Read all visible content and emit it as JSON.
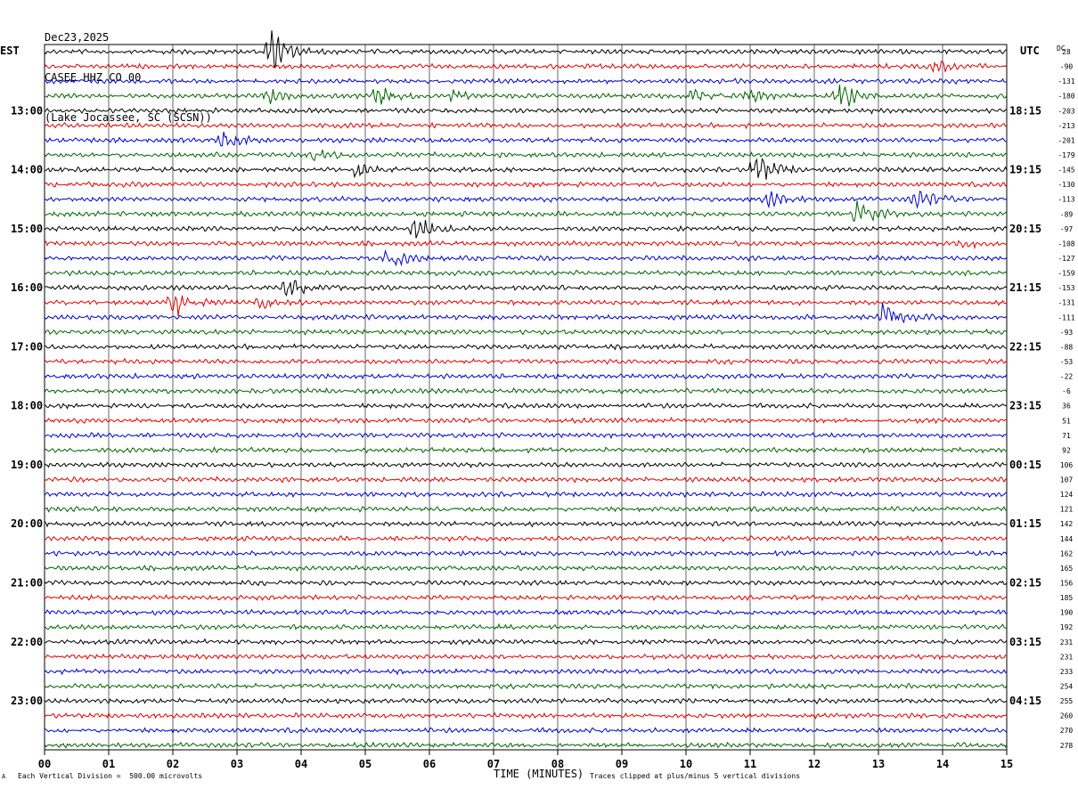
{
  "header": {
    "date": "Dec23,2025",
    "station": "CASEE HHZ CO 00",
    "location": "(Lake Jocassee, SC (SCSN))"
  },
  "left_tz": "EST",
  "right_tz": "UTC",
  "dc_label": "DC",
  "footer": {
    "logo_mark": "A",
    "scale_note": "Each Vertical Division =  500.00 microvolts",
    "x_title": "TIME (MINUTES)",
    "clip_note": "Traces clipped at plus/minus 5 vertical divisions"
  },
  "colors": {
    "black": "#000000",
    "red": "#e00000",
    "blue": "#0000cc",
    "green": "#006400",
    "grid": "#000000"
  },
  "chart_data": {
    "type": "line",
    "title": "CASEE HHZ CO 00",
    "xlabel": "TIME (MINUTES)",
    "ylabel": "",
    "xlim": [
      0,
      15
    ],
    "x_ticks": [
      "00",
      "01",
      "02",
      "03",
      "04",
      "05",
      "06",
      "07",
      "08",
      "09",
      "10",
      "11",
      "12",
      "13",
      "14",
      "15"
    ],
    "trace_count": 48,
    "trace_colors": [
      "black",
      "red",
      "blue",
      "green"
    ],
    "left_hour_labels": [
      {
        "trace": 4,
        "text": "13:00"
      },
      {
        "trace": 8,
        "text": "14:00"
      },
      {
        "trace": 12,
        "text": "15:00"
      },
      {
        "trace": 16,
        "text": "16:00"
      },
      {
        "trace": 20,
        "text": "17:00"
      },
      {
        "trace": 24,
        "text": "18:00"
      },
      {
        "trace": 28,
        "text": "19:00"
      },
      {
        "trace": 32,
        "text": "20:00"
      },
      {
        "trace": 36,
        "text": "21:00"
      },
      {
        "trace": 40,
        "text": "22:00"
      },
      {
        "trace": 44,
        "text": "23:00"
      }
    ],
    "right_hour_labels": [
      {
        "trace": 4,
        "text": "18:15"
      },
      {
        "trace": 8,
        "text": "19:15"
      },
      {
        "trace": 12,
        "text": "20:15"
      },
      {
        "trace": 16,
        "text": "21:15"
      },
      {
        "trace": 20,
        "text": "22:15"
      },
      {
        "trace": 24,
        "text": "23:15"
      },
      {
        "trace": 28,
        "text": "00:15"
      },
      {
        "trace": 32,
        "text": "01:15"
      },
      {
        "trace": 36,
        "text": "02:15"
      },
      {
        "trace": 40,
        "text": "03:15"
      },
      {
        "trace": 44,
        "text": "04:15"
      }
    ],
    "dc_offsets": [
      28,
      -90,
      -131,
      -180,
      -203,
      -213,
      -201,
      -179,
      -145,
      -130,
      -113,
      -89,
      -97,
      -108,
      -127,
      -159,
      -153,
      -131,
      -111,
      -93,
      -88,
      -53,
      -22,
      -6,
      36,
      51,
      71,
      92,
      106,
      107,
      124,
      121,
      142,
      144,
      162,
      165,
      156,
      185,
      190,
      192,
      231,
      231,
      233,
      254,
      255,
      260,
      270,
      278
    ],
    "events": [
      {
        "trace": 0,
        "minute": 3.5,
        "amp": 22
      },
      {
        "trace": 1,
        "minute": 13.9,
        "amp": 5
      },
      {
        "trace": 3,
        "minute": 3.5,
        "amp": 6
      },
      {
        "trace": 3,
        "minute": 5.2,
        "amp": 9
      },
      {
        "trace": 3,
        "minute": 6.4,
        "amp": 5
      },
      {
        "trace": 3,
        "minute": 10.1,
        "amp": 6
      },
      {
        "trace": 3,
        "minute": 11.0,
        "amp": 6
      },
      {
        "trace": 3,
        "minute": 12.4,
        "amp": 14
      },
      {
        "trace": 6,
        "minute": 2.8,
        "amp": 9
      },
      {
        "trace": 7,
        "minute": 4.2,
        "amp": 7
      },
      {
        "trace": 8,
        "minute": 4.9,
        "amp": 8
      },
      {
        "trace": 8,
        "minute": 11.1,
        "amp": 16
      },
      {
        "trace": 10,
        "minute": 11.3,
        "amp": 9
      },
      {
        "trace": 10,
        "minute": 13.6,
        "amp": 10
      },
      {
        "trace": 11,
        "minute": 12.7,
        "amp": 14
      },
      {
        "trace": 12,
        "minute": 5.8,
        "amp": 12
      },
      {
        "trace": 13,
        "minute": 14.3,
        "amp": 5
      },
      {
        "trace": 14,
        "minute": 5.4,
        "amp": 12
      },
      {
        "trace": 16,
        "minute": 3.8,
        "amp": 11
      },
      {
        "trace": 17,
        "minute": 2.0,
        "amp": 14
      },
      {
        "trace": 17,
        "minute": 3.4,
        "amp": 5
      },
      {
        "trace": 18,
        "minute": 13.1,
        "amp": 15
      }
    ]
  }
}
